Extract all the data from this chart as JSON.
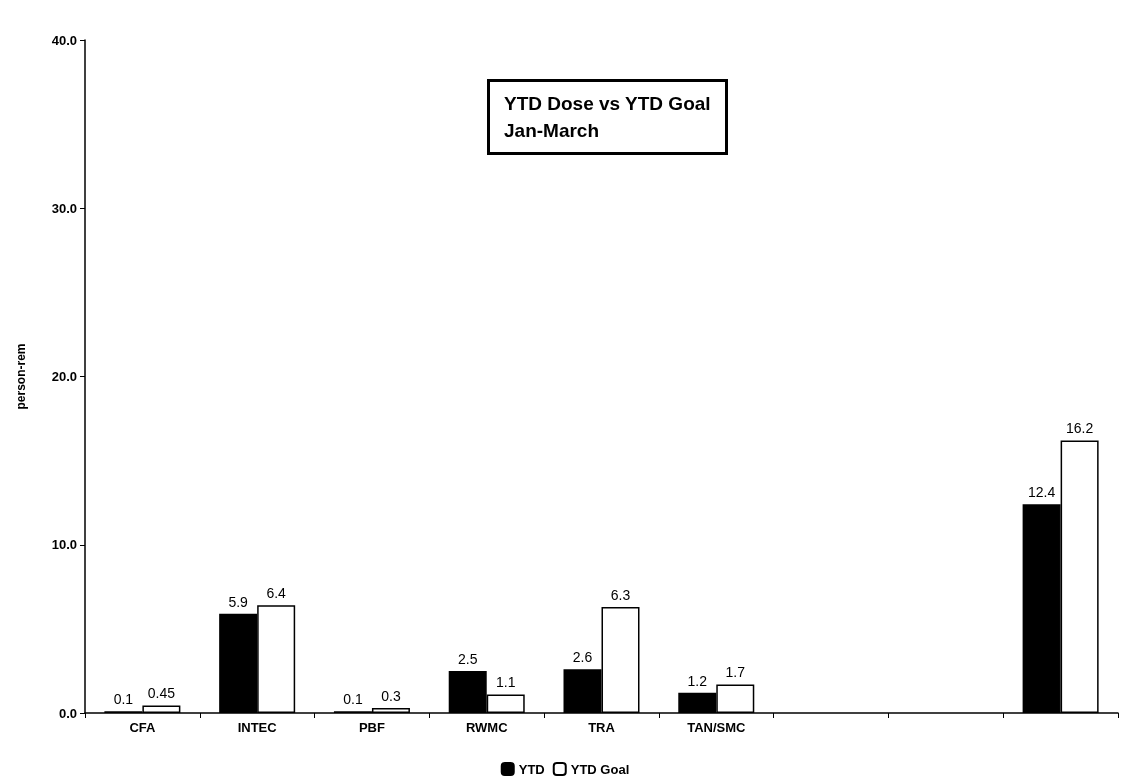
{
  "chart_data": {
    "type": "bar",
    "title": "YTD Dose vs YTD Goal",
    "subtitle": "Jan-March",
    "ylabel": "person-rem",
    "categories": [
      "CFA",
      "INTEC",
      "PBF",
      "RWMC",
      "TRA",
      "TAN/SMC",
      null,
      null,
      null
    ],
    "series": [
      {
        "name": "YTD",
        "color": "#000000",
        "values": [
          0.1,
          5.9,
          0.1,
          2.5,
          2.6,
          1.2,
          null,
          null,
          12.4
        ]
      },
      {
        "name": "YTD Goal",
        "color": "#ffffff",
        "values": [
          0.45,
          6.4,
          0.3,
          1.1,
          6.3,
          1.7,
          null,
          null,
          16.2
        ]
      }
    ],
    "ylim": [
      0,
      40
    ],
    "yticks": [
      {
        "value": 0,
        "label": "0.0"
      },
      {
        "value": 10,
        "label": "10.0"
      },
      {
        "value": 20,
        "label": "20.0"
      },
      {
        "value": 30,
        "label": "30.0"
      },
      {
        "value": 40,
        "label": "40.0"
      }
    ],
    "data_labels": true,
    "grid": false,
    "legend": "bottom"
  }
}
